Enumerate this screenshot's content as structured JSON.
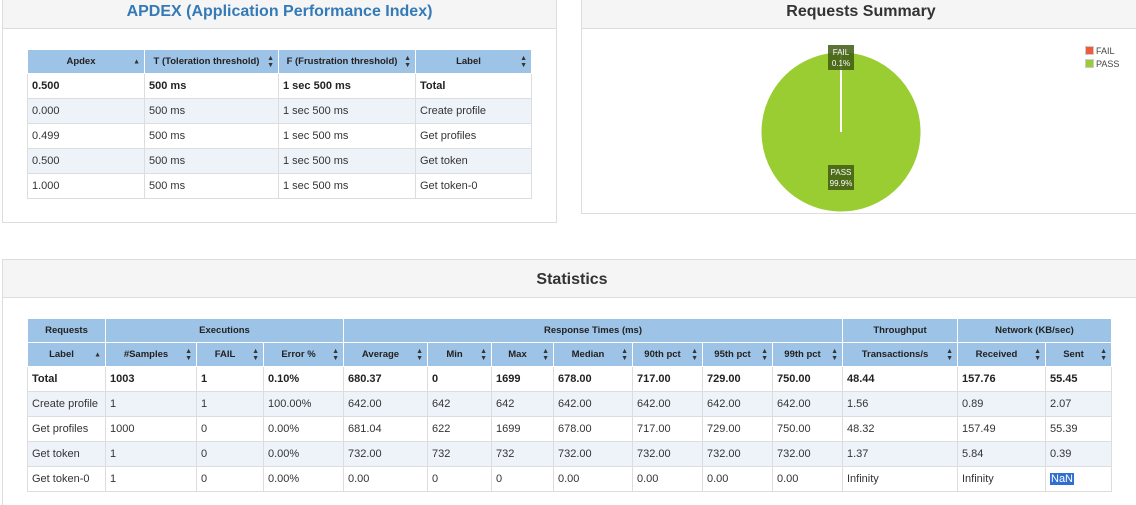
{
  "apdex": {
    "title": "APDEX (Application Performance Index)",
    "columns": [
      {
        "label": "Apdex",
        "sort": "asc"
      },
      {
        "label": "T (Toleration threshold)",
        "sort": "both"
      },
      {
        "label": "F (Frustration threshold)",
        "sort": "both"
      },
      {
        "label": "Label",
        "sort": "both"
      }
    ],
    "rows": [
      [
        "0.500",
        "500 ms",
        "1 sec 500 ms",
        "Total"
      ],
      [
        "0.000",
        "500 ms",
        "1 sec 500 ms",
        "Create profile"
      ],
      [
        "0.499",
        "500 ms",
        "1 sec 500 ms",
        "Get profiles"
      ],
      [
        "0.500",
        "500 ms",
        "1 sec 500 ms",
        "Get token"
      ],
      [
        "1.000",
        "500 ms",
        "1 sec 500 ms",
        "Get token-0"
      ]
    ]
  },
  "summary": {
    "title": "Requests Summary",
    "legend": [
      {
        "label": "FAIL",
        "color": "#f05a3b"
      },
      {
        "label": "PASS",
        "color": "#9acd32"
      }
    ],
    "slices": [
      {
        "label": "FAIL",
        "percent_label": "0.1%",
        "value": 0.1,
        "color": "#f05a3b"
      },
      {
        "label": "PASS",
        "percent_label": "99.9%",
        "value": 99.9,
        "color": "#9acd32"
      }
    ]
  },
  "stats": {
    "title": "Statistics",
    "groups": [
      {
        "label": "Requests",
        "span": 1
      },
      {
        "label": "Executions",
        "span": 3
      },
      {
        "label": "Response Times (ms)",
        "span": 7
      },
      {
        "label": "Throughput",
        "span": 1
      },
      {
        "label": "Network (KB/sec)",
        "span": 2
      }
    ],
    "columns": [
      {
        "label": "Label",
        "sort": "asc"
      },
      {
        "label": "#Samples",
        "sort": "both"
      },
      {
        "label": "FAIL",
        "sort": "both"
      },
      {
        "label": "Error %",
        "sort": "both"
      },
      {
        "label": "Average",
        "sort": "both"
      },
      {
        "label": "Min",
        "sort": "both"
      },
      {
        "label": "Max",
        "sort": "both"
      },
      {
        "label": "Median",
        "sort": "both"
      },
      {
        "label": "90th pct",
        "sort": "both"
      },
      {
        "label": "95th pct",
        "sort": "both"
      },
      {
        "label": "99th pct",
        "sort": "both"
      },
      {
        "label": "Transactions/s",
        "sort": "both"
      },
      {
        "label": "Received",
        "sort": "both"
      },
      {
        "label": "Sent",
        "sort": "both"
      }
    ],
    "rows": [
      [
        "Total",
        "1003",
        "1",
        "0.10%",
        "680.37",
        "0",
        "1699",
        "678.00",
        "717.00",
        "729.00",
        "750.00",
        "48.44",
        "157.76",
        "55.45"
      ],
      [
        "Create profile",
        "1",
        "1",
        "100.00%",
        "642.00",
        "642",
        "642",
        "642.00",
        "642.00",
        "642.00",
        "642.00",
        "1.56",
        "0.89",
        "2.07"
      ],
      [
        "Get profiles",
        "1000",
        "0",
        "0.00%",
        "681.04",
        "622",
        "1699",
        "678.00",
        "717.00",
        "729.00",
        "750.00",
        "48.32",
        "157.49",
        "55.39"
      ],
      [
        "Get token",
        "1",
        "0",
        "0.00%",
        "732.00",
        "732",
        "732",
        "732.00",
        "732.00",
        "732.00",
        "732.00",
        "1.37",
        "5.84",
        "0.39"
      ],
      [
        "Get token-0",
        "1",
        "0",
        "0.00%",
        "0.00",
        "0",
        "0",
        "0.00",
        "0.00",
        "0.00",
        "0.00",
        "Infinity",
        "Infinity",
        "NaN"
      ]
    ]
  }
}
